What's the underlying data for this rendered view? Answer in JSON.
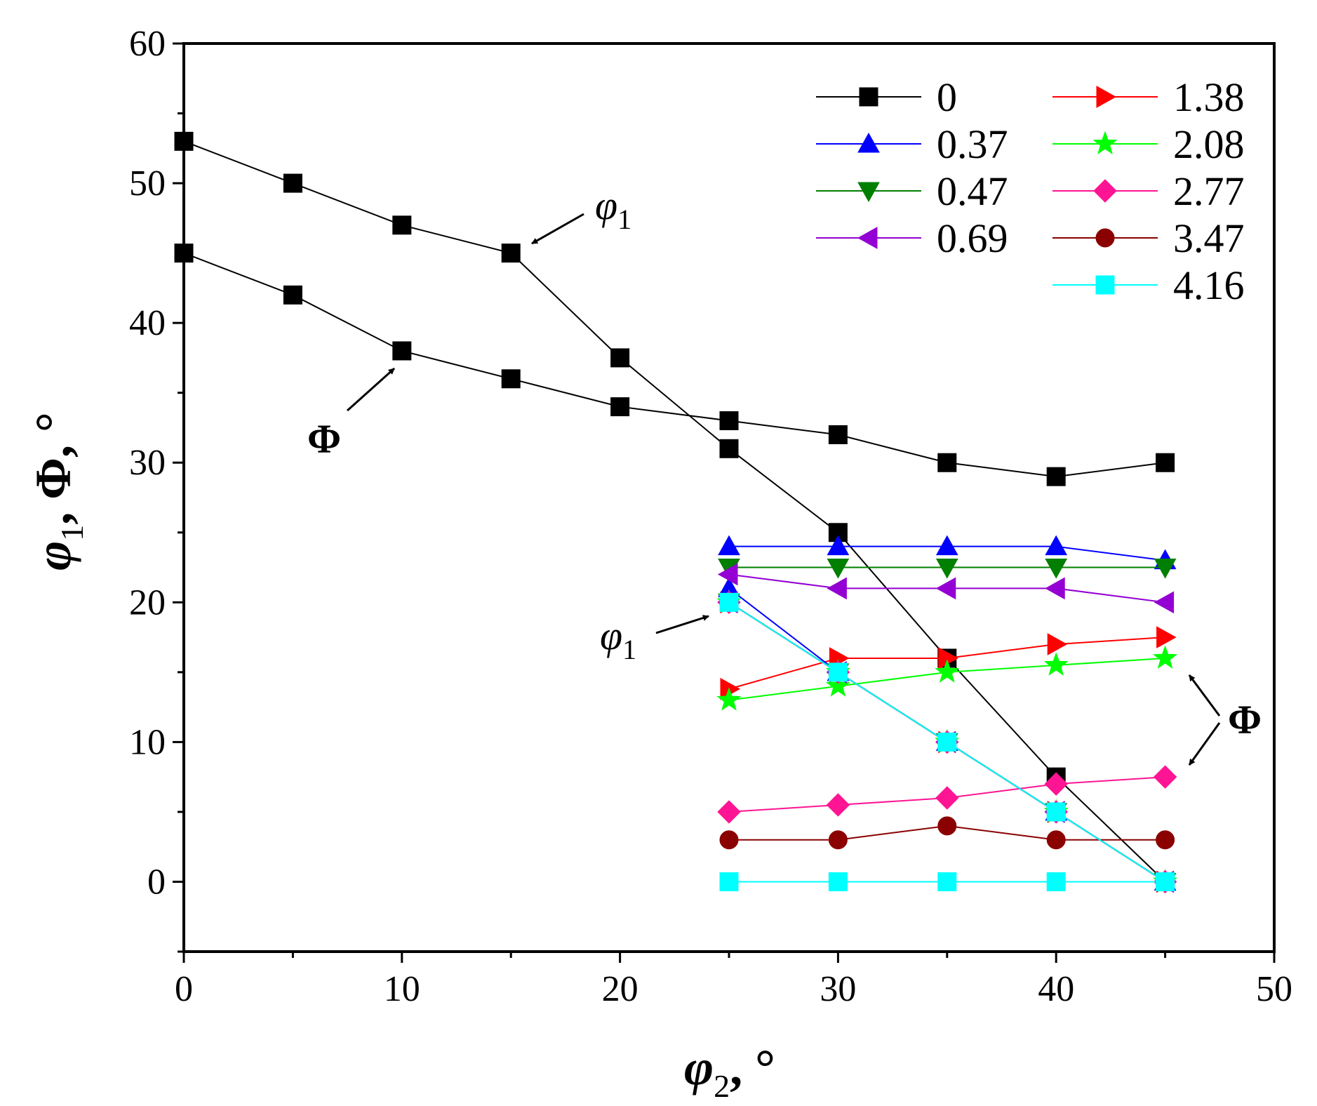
{
  "chart_data": {
    "type": "line",
    "title": "",
    "xlabel": "φ2, °",
    "ylabel": "φ1, Φ, °",
    "xlabel_parts": {
      "main": "φ",
      "sub": "2",
      "suffix": ", °"
    },
    "ylabel_parts": {
      "main": "φ",
      "sub": "1",
      "middle": ", Φ",
      "suffix": ", °"
    },
    "xlim": [
      0,
      50
    ],
    "ylim": [
      -5,
      60
    ],
    "xticks": [
      0,
      10,
      20,
      30,
      40,
      50
    ],
    "yticks": [
      0,
      10,
      20,
      30,
      40,
      50,
      60
    ],
    "xtick_labels": [
      "0",
      "10",
      "20",
      "30",
      "40",
      "50"
    ],
    "ytick_labels": [
      "0",
      "10",
      "20",
      "30",
      "40",
      "50",
      "60"
    ],
    "grid": false,
    "legend_position": "top-right",
    "series": [
      {
        "name": "0",
        "color": "#000000",
        "marker": "square",
        "curves": [
          {
            "label": "φ1",
            "points": [
              [
                0,
                53
              ],
              [
                5,
                50
              ],
              [
                10,
                47
              ],
              [
                15,
                45
              ],
              [
                20,
                37.5
              ],
              [
                25,
                31
              ],
              [
                30,
                25
              ],
              [
                35,
                16
              ],
              [
                40,
                7.5
              ],
              [
                45,
                0
              ]
            ]
          },
          {
            "label": "Φ",
            "points": [
              [
                0,
                45
              ],
              [
                5,
                42
              ],
              [
                10,
                38
              ],
              [
                15,
                36
              ],
              [
                20,
                34
              ],
              [
                25,
                33
              ],
              [
                30,
                32
              ],
              [
                35,
                30
              ],
              [
                40,
                29
              ],
              [
                45,
                30
              ]
            ]
          }
        ]
      },
      {
        "name": "1.38",
        "color": "#ff0000",
        "marker": "triangle-right",
        "curves": [
          {
            "label": "φ1",
            "points": [
              [
                25,
                20
              ],
              [
                30,
                15
              ],
              [
                35,
                10
              ],
              [
                40,
                5
              ],
              [
                45,
                0
              ]
            ]
          },
          {
            "label": "Φ",
            "points": [
              [
                25,
                13.8
              ],
              [
                30,
                16
              ],
              [
                35,
                16
              ],
              [
                40,
                17
              ],
              [
                45,
                17.5
              ]
            ]
          }
        ]
      },
      {
        "name": "0.37",
        "color": "#0000ff",
        "marker": "triangle-up",
        "curves": [
          {
            "label": "φ1",
            "points": [
              [
                25,
                21
              ],
              [
                30,
                15
              ],
              [
                35,
                10
              ],
              [
                40,
                5
              ],
              [
                45,
                0
              ]
            ]
          },
          {
            "label": "Φ",
            "points": [
              [
                25,
                24
              ],
              [
                30,
                24
              ],
              [
                35,
                24
              ],
              [
                40,
                24
              ],
              [
                45,
                23
              ]
            ]
          }
        ]
      },
      {
        "name": "2.08",
        "color": "#00ff00",
        "marker": "star",
        "curves": [
          {
            "label": "φ1",
            "points": [
              [
                25,
                20
              ],
              [
                30,
                15
              ],
              [
                35,
                10
              ],
              [
                40,
                5
              ],
              [
                45,
                0
              ]
            ]
          },
          {
            "label": "Φ",
            "points": [
              [
                25,
                13
              ],
              [
                30,
                14
              ],
              [
                35,
                15
              ],
              [
                40,
                15.5
              ],
              [
                45,
                16
              ]
            ]
          }
        ]
      },
      {
        "name": "0.47",
        "color": "#007f00",
        "marker": "triangle-down",
        "curves": [
          {
            "label": "φ1",
            "points": [
              [
                25,
                20
              ],
              [
                30,
                15
              ],
              [
                35,
                10
              ],
              [
                40,
                5
              ],
              [
                45,
                0
              ]
            ]
          },
          {
            "label": "Φ",
            "points": [
              [
                25,
                22.5
              ],
              [
                30,
                22.5
              ],
              [
                35,
                22.5
              ],
              [
                40,
                22.5
              ],
              [
                45,
                22.5
              ]
            ]
          }
        ]
      },
      {
        "name": "2.77",
        "color": "#ff1493",
        "marker": "diamond",
        "curves": [
          {
            "label": "φ1",
            "points": [
              [
                25,
                20
              ],
              [
                30,
                15
              ],
              [
                35,
                10
              ],
              [
                40,
                5
              ],
              [
                45,
                0
              ]
            ]
          },
          {
            "label": "Φ",
            "points": [
              [
                25,
                5
              ],
              [
                30,
                5.5
              ],
              [
                35,
                6
              ],
              [
                40,
                7
              ],
              [
                45,
                7.5
              ]
            ]
          }
        ]
      },
      {
        "name": "0.69",
        "color": "#9400d3",
        "marker": "triangle-left",
        "curves": [
          {
            "label": "φ1",
            "points": [
              [
                25,
                20
              ],
              [
                30,
                15
              ],
              [
                35,
                10
              ],
              [
                40,
                5
              ],
              [
                45,
                0
              ]
            ]
          },
          {
            "label": "Φ",
            "points": [
              [
                25,
                22
              ],
              [
                30,
                21
              ],
              [
                35,
                21
              ],
              [
                40,
                21
              ],
              [
                45,
                20
              ]
            ]
          }
        ]
      },
      {
        "name": "3.47",
        "color": "#8b0000",
        "marker": "circle",
        "curves": [
          {
            "label": "φ1",
            "points": [
              [
                25,
                20
              ],
              [
                30,
                15
              ],
              [
                35,
                10
              ],
              [
                40,
                5
              ],
              [
                45,
                0
              ]
            ]
          },
          {
            "label": "Φ",
            "points": [
              [
                25,
                3
              ],
              [
                30,
                3
              ],
              [
                35,
                4
              ],
              [
                40,
                3
              ],
              [
                45,
                3
              ]
            ]
          }
        ]
      },
      {
        "name": "4.16",
        "color": "#00ffff",
        "marker": "square",
        "curves": [
          {
            "label": "φ1",
            "points": [
              [
                25,
                20
              ],
              [
                30,
                15
              ],
              [
                35,
                10
              ],
              [
                40,
                5
              ],
              [
                45,
                0
              ]
            ]
          },
          {
            "label": "Φ",
            "points": [
              [
                25,
                0
              ],
              [
                30,
                0
              ],
              [
                35,
                0
              ],
              [
                40,
                0
              ],
              [
                45,
                0
              ]
            ]
          }
        ]
      }
    ],
    "legend_order": [
      [
        "0",
        "0.37",
        "0.47",
        "0.69"
      ],
      [
        "1.38",
        "2.08",
        "2.77",
        "3.47",
        "4.16"
      ]
    ],
    "annotations": [
      {
        "text_main": "φ",
        "text_sub": "1",
        "refers_to": "top curve φ1",
        "arrow_to": [
          15,
          45
        ]
      },
      {
        "text": "Φ",
        "refers_to": "curve Φ",
        "arrow_to": [
          10,
          38
        ]
      },
      {
        "text_main": "φ",
        "text_sub": "1",
        "refers_to": "lower φ1 curves",
        "arrow_to": [
          25,
          20
        ]
      },
      {
        "text": "Φ",
        "refers_to": "lower Φ curves",
        "arrow_to": [
          [
            45,
            16
          ],
          [
            45,
            8.5
          ]
        ]
      }
    ]
  }
}
